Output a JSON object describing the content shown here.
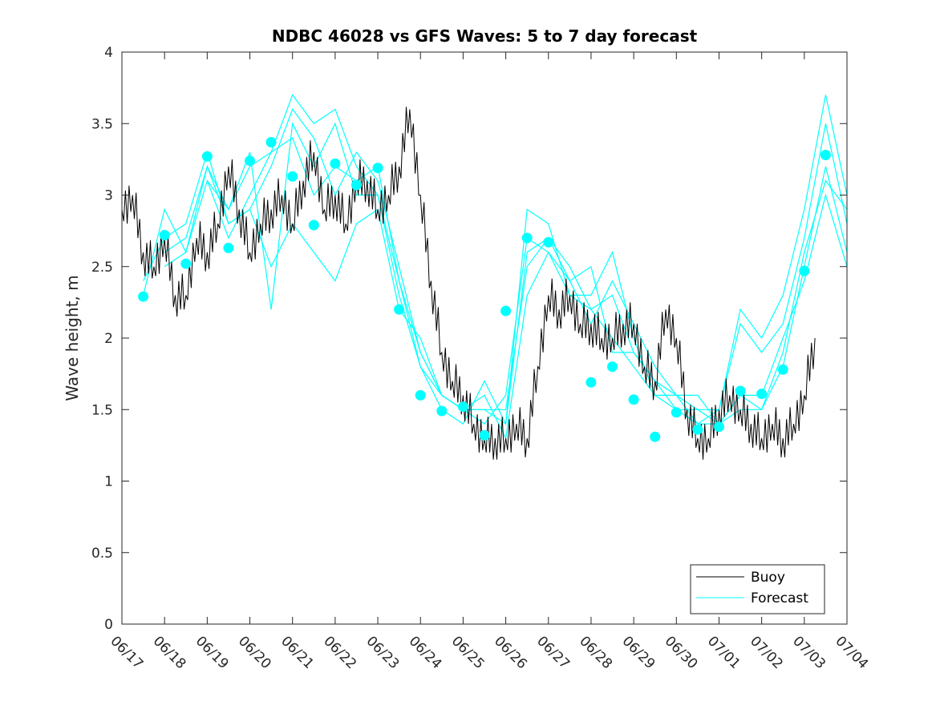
{
  "chart_data": {
    "type": "line",
    "title": "NDBC 46028 vs GFS Waves: 5 to 7 day forecast",
    "xlabel": "",
    "ylabel": "Wave height, m",
    "xlim": [
      "06/17",
      "07/04"
    ],
    "ylim": [
      0,
      4
    ],
    "x_tick_labels": [
      "06/17",
      "06/18",
      "06/19",
      "06/20",
      "06/21",
      "06/22",
      "06/23",
      "06/24",
      "06/25",
      "06/26",
      "06/27",
      "06/28",
      "06/29",
      "06/30",
      "07/01",
      "07/02",
      "07/03",
      "07/04"
    ],
    "y_ticks": [
      0,
      0.5,
      1,
      1.5,
      2,
      2.5,
      3,
      3.5,
      4
    ],
    "y_tick_labels": [
      "0",
      "0.5",
      "1",
      "1.5",
      "2",
      "2.5",
      "3",
      "3.5",
      "4"
    ],
    "grid": false,
    "legend_position": "bottom-right",
    "colors": {
      "buoy": "#000000",
      "forecast": "#00ffff"
    },
    "series": [
      {
        "name": "Buoy",
        "role": "observed",
        "x": [
          "06/17 00:00",
          "06/17 06:00",
          "06/17 12:00",
          "06/17 18:00",
          "06/18 00:00",
          "06/18 06:00",
          "06/18 12:00",
          "06/18 18:00",
          "06/19 00:00",
          "06/19 06:00",
          "06/19 12:00",
          "06/19 18:00",
          "06/20 00:00",
          "06/20 06:00",
          "06/20 12:00",
          "06/20 18:00",
          "06/21 00:00",
          "06/21 06:00",
          "06/21 12:00",
          "06/21 18:00",
          "06/22 00:00",
          "06/22 06:00",
          "06/22 12:00",
          "06/22 18:00",
          "06/23 00:00",
          "06/23 06:00",
          "06/23 12:00",
          "06/23 18:00",
          "06/24 00:00",
          "06/24 06:00",
          "06/24 12:00",
          "06/24 18:00",
          "06/25 00:00",
          "06/25 06:00",
          "06/25 12:00",
          "06/25 18:00",
          "06/26 00:00",
          "06/26 06:00",
          "06/26 12:00",
          "06/26 18:00",
          "06/27 00:00",
          "06/27 06:00",
          "06/27 12:00",
          "06/27 18:00",
          "06/28 00:00",
          "06/28 06:00",
          "06/28 12:00",
          "06/28 18:00",
          "06/29 00:00",
          "06/29 06:00",
          "06/29 12:00",
          "06/29 18:00",
          "06/30 00:00",
          "06/30 06:00",
          "06/30 12:00",
          "06/30 18:00",
          "07/01 00:00",
          "07/01 06:00",
          "07/01 12:00",
          "07/01 18:00",
          "07/02 00:00",
          "07/02 06:00",
          "07/02 12:00",
          "07/02 18:00",
          "07/03 00:00",
          "07/03 06:00"
        ],
        "values": [
          2.9,
          3.0,
          2.6,
          2.5,
          2.7,
          2.3,
          2.3,
          2.7,
          2.6,
          2.8,
          3.2,
          2.9,
          2.6,
          2.8,
          2.9,
          3.0,
          2.8,
          3.1,
          3.3,
          2.9,
          3.0,
          2.8,
          3.1,
          3.1,
          2.9,
          3.0,
          3.2,
          3.6,
          3.0,
          2.4,
          1.9,
          1.7,
          1.6,
          1.4,
          1.3,
          1.3,
          1.3,
          1.4,
          1.3,
          1.8,
          2.3,
          2.2,
          2.3,
          2.1,
          2.1,
          2.0,
          2.0,
          2.1,
          2.1,
          1.8,
          1.7,
          2.2,
          2.0,
          1.5,
          1.3,
          1.3,
          1.5,
          1.6,
          1.5,
          1.4,
          1.3,
          1.4,
          1.3,
          1.4,
          1.6,
          2.0
        ]
      },
      {
        "name": "Forecast",
        "role": "forecast",
        "runs": [
          {
            "x": [
              "06/17 12:00",
              "06/18 00:00",
              "06/18 12:00",
              "06/19 00:00",
              "06/19 12:00",
              "06/20 00:00",
              "06/20 12:00",
              "06/21 00:00",
              "06/21 12:00",
              "06/22 00:00",
              "06/22 12:00",
              "06/23 00:00",
              "06/23 12:00",
              "06/24 00:00",
              "06/24 12:00",
              "06/25 00:00",
              "06/25 12:00",
              "06/26 00:00",
              "06/26 12:00",
              "06/27 00:00",
              "06/27 12:00",
              "06/28 00:00",
              "06/28 12:00",
              "06/29 00:00",
              "06/29 12:00",
              "06/30 00:00",
              "06/30 12:00",
              "07/01 00:00",
              "07/01 12:00",
              "07/02 00:00",
              "07/02 12:00",
              "07/03 00:00",
              "07/03 12:00",
              "07/04 00:00"
            ],
            "values": [
              2.3,
              2.9,
              2.6,
              3.2,
              2.9,
              3.2,
              3.3,
              3.4,
              3.0,
              3.2,
              3.1,
              3.2,
              2.4,
              1.8,
              1.6,
              1.5,
              1.4,
              1.6,
              2.7,
              2.6,
              2.3,
              2.2,
              2.0,
              1.8,
              1.6,
              1.5,
              1.4,
              1.4,
              1.5,
              1.5,
              1.8,
              2.5,
              3.2,
              2.6
            ]
          },
          {
            "x": [
              "06/17 12:00",
              "06/18 00:00",
              "06/18 12:00",
              "06/19 00:00",
              "06/19 12:00",
              "06/20 00:00",
              "06/20 12:00",
              "06/21 00:00",
              "06/21 12:00",
              "06/22 00:00",
              "06/22 12:00",
              "06/23 00:00",
              "06/23 12:00",
              "06/24 00:00",
              "06/24 12:00",
              "06/25 00:00",
              "06/25 12:00",
              "06/26 00:00",
              "06/26 12:00",
              "06/27 00:00",
              "06/27 12:00",
              "06/28 00:00",
              "06/28 12:00",
              "06/29 00:00",
              "06/29 12:00",
              "06/30 00:00",
              "06/30 12:00",
              "07/01 00:00",
              "07/01 12:00",
              "07/02 00:00",
              "07/02 12:00",
              "07/03 00:00",
              "07/03 12:00",
              "07/04 00:00"
            ],
            "values": [
              2.4,
              2.7,
              2.8,
              3.3,
              2.8,
              2.9,
              3.2,
              3.6,
              3.4,
              3.0,
              3.3,
              3.1,
              2.5,
              1.9,
              1.6,
              1.5,
              1.5,
              1.5,
              2.5,
              2.7,
              2.4,
              2.5,
              1.9,
              1.9,
              1.7,
              1.6,
              1.6,
              1.4,
              1.6,
              1.6,
              2.0,
              2.4,
              3.0,
              2.5
            ]
          },
          {
            "x": [
              "06/18 00:00",
              "06/18 12:00",
              "06/19 00:00",
              "06/19 12:00",
              "06/20 00:00",
              "06/20 12:00",
              "06/21 00:00",
              "06/21 12:00",
              "06/22 00:00",
              "06/22 12:00",
              "06/23 00:00",
              "06/23 12:00",
              "06/24 00:00",
              "06/24 12:00",
              "06/25 00:00",
              "06/25 12:00",
              "06/26 00:00",
              "06/26 12:00",
              "06/27 00:00",
              "06/27 12:00",
              "06/28 00:00",
              "06/28 12:00",
              "06/29 00:00",
              "06/29 12:00",
              "06/30 00:00",
              "06/30 12:00",
              "07/01 00:00",
              "07/01 12:00",
              "07/02 00:00",
              "07/02 12:00",
              "07/03 00:00",
              "07/03 12:00",
              "07/04 00:00"
            ],
            "values": [
              2.5,
              2.6,
              3.1,
              2.7,
              3.0,
              3.3,
              3.7,
              3.5,
              3.6,
              3.2,
              3.0,
              2.3,
              1.8,
              1.5,
              1.4,
              1.7,
              1.4,
              2.9,
              2.8,
              2.3,
              2.3,
              2.6,
              2.0,
              1.6,
              1.6,
              1.4,
              1.5,
              2.2,
              2.0,
              2.3,
              2.9,
              3.7,
              3.0
            ]
          },
          {
            "x": [
              "06/18 00:00",
              "06/18 12:00",
              "06/19 00:00",
              "06/19 12:00",
              "06/20 00:00",
              "06/20 12:00",
              "06/21 00:00",
              "06/21 12:00",
              "06/22 00:00",
              "06/22 12:00",
              "06/23 00:00",
              "06/23 12:00",
              "06/24 00:00",
              "06/24 12:00",
              "06/25 00:00",
              "06/25 12:00",
              "06/26 00:00",
              "06/26 12:00",
              "06/27 00:00",
              "06/27 12:00",
              "06/28 00:00",
              "06/28 12:00",
              "06/29 00:00",
              "06/29 12:00",
              "06/30 00:00",
              "06/30 12:00",
              "07/01 00:00",
              "07/01 12:00",
              "07/02 00:00",
              "07/02 12:00",
              "07/03 00:00",
              "07/03 12:00",
              "07/04 00:00"
            ],
            "values": [
              2.6,
              2.7,
              3.2,
              2.8,
              2.9,
              2.5,
              2.8,
              2.6,
              2.4,
              2.8,
              2.9,
              2.2,
              2.0,
              1.6,
              1.5,
              1.6,
              1.3,
              2.3,
              2.6,
              2.4,
              2.1,
              2.4,
              2.1,
              1.8,
              1.6,
              1.5,
              1.4,
              1.6,
              1.5,
              1.9,
              2.6,
              3.1,
              2.9
            ]
          },
          {
            "x": [
              "06/19 00:00",
              "06/19 12:00",
              "06/20 00:00",
              "06/20 12:00",
              "06/21 00:00",
              "06/21 12:00",
              "06/22 00:00",
              "06/22 12:00",
              "06/23 00:00",
              "06/23 12:00",
              "06/24 00:00",
              "06/24 12:00",
              "06/25 00:00",
              "06/25 12:00",
              "06/26 00:00",
              "06/26 12:00",
              "06/27 00:00",
              "06/27 12:00",
              "06/28 00:00",
              "06/28 12:00",
              "06/29 00:00",
              "06/29 12:00",
              "06/30 00:00",
              "06/30 12:00",
              "07/01 00:00",
              "07/01 12:00",
              "07/02 00:00",
              "07/02 12:00",
              "07/03 00:00",
              "07/03 12:00",
              "07/04 00:00"
            ],
            "values": [
              3.1,
              2.9,
              3.3,
              2.2,
              3.5,
              3.2,
              3.5,
              3.0,
              3.0,
              2.4,
              1.9,
              1.6,
              1.5,
              1.5,
              1.4,
              2.6,
              2.7,
              2.5,
              2.2,
              2.3,
              1.9,
              1.7,
              1.5,
              1.5,
              1.5,
              2.1,
              1.9,
              2.1,
              2.7,
              3.5,
              2.8
            ]
          }
        ],
        "markers": {
          "x": [
            "06/17 12:00",
            "06/18 00:00",
            "06/18 12:00",
            "06/19 00:00",
            "06/19 12:00",
            "06/20 00:00",
            "06/20 12:00",
            "06/21 00:00",
            "06/21 12:00",
            "06/22 00:00",
            "06/22 12:00",
            "06/23 00:00",
            "06/23 12:00",
            "06/24 00:00",
            "06/24 12:00",
            "06/25 00:00",
            "06/25 12:00",
            "06/26 00:00",
            "06/26 12:00",
            "06/27 00:00",
            "06/28 00:00",
            "06/28 12:00",
            "06/29 00:00",
            "06/29 12:00",
            "06/30 00:00",
            "06/30 12:00",
            "07/01 00:00",
            "07/01 12:00",
            "07/02 00:00",
            "07/02 12:00",
            "07/03 00:00",
            "07/03 12:00"
          ],
          "values": [
            2.29,
            2.72,
            2.52,
            3.27,
            2.63,
            3.24,
            3.37,
            3.13,
            2.79,
            3.22,
            3.07,
            3.19,
            2.2,
            1.6,
            1.49,
            1.52,
            1.32,
            2.19,
            2.7,
            2.67,
            1.69,
            1.8,
            1.57,
            1.31,
            1.48,
            1.36,
            1.38,
            1.63,
            1.61,
            1.78,
            2.47,
            3.28
          ]
        }
      }
    ]
  }
}
